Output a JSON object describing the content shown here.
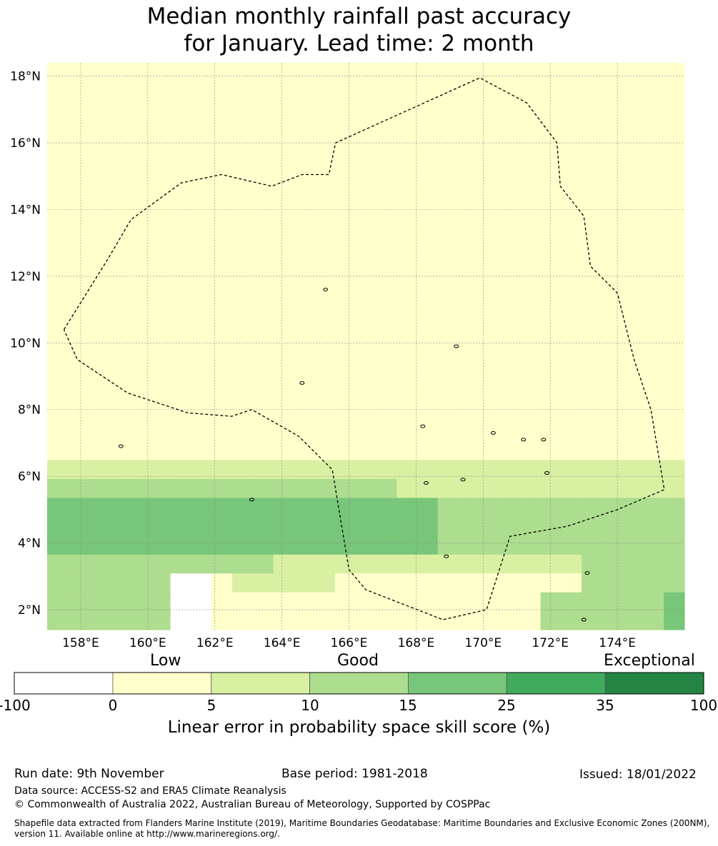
{
  "title_line1": "Median monthly rainfall past accuracy",
  "title_line2": "for January. Lead time: 2 month",
  "map": {
    "lat_labels": [
      "18°N",
      "16°N",
      "14°N",
      "12°N",
      "10°N",
      "8°N",
      "6°N",
      "4°N",
      "2°N"
    ],
    "lon_labels": [
      "158°E",
      "160°E",
      "162°E",
      "164°E",
      "166°E",
      "168°E",
      "170°E",
      "172°E",
      "174°E"
    ],
    "lat_values": [
      18,
      16,
      14,
      12,
      10,
      8,
      6,
      4,
      2
    ],
    "lon_values": [
      158,
      160,
      162,
      164,
      166,
      168,
      170,
      172,
      174
    ],
    "extent": {
      "lon_min": 157,
      "lon_max": 176,
      "lat_min": 1.4,
      "lat_max": 18.4
    },
    "cell_size_deg": {
      "lon": 0.83,
      "lat": 0.56
    },
    "eez_boundary": [
      [
        157.5,
        10.4
      ],
      [
        158.8,
        12.5
      ],
      [
        159.5,
        13.7
      ],
      [
        161.0,
        14.8
      ],
      [
        162.2,
        15.05
      ],
      [
        163.7,
        14.7
      ],
      [
        164.6,
        15.05
      ],
      [
        165.4,
        15.05
      ],
      [
        165.6,
        16.0
      ],
      [
        169.9,
        17.95
      ],
      [
        171.3,
        17.2
      ],
      [
        172.2,
        16.0
      ],
      [
        172.3,
        14.7
      ],
      [
        173.0,
        13.8
      ],
      [
        173.2,
        12.3
      ],
      [
        174.0,
        11.5
      ],
      [
        174.5,
        9.5
      ],
      [
        175.0,
        8.0
      ],
      [
        175.4,
        5.6
      ],
      [
        174.0,
        5.0
      ],
      [
        172.5,
        4.5
      ],
      [
        170.8,
        4.2
      ],
      [
        170.1,
        2.0
      ],
      [
        168.8,
        1.7
      ],
      [
        166.5,
        2.6
      ],
      [
        166.0,
        3.2
      ],
      [
        165.5,
        6.2
      ],
      [
        164.5,
        7.2
      ],
      [
        163.1,
        8.0
      ],
      [
        162.5,
        7.8
      ],
      [
        161.2,
        7.9
      ],
      [
        159.4,
        8.5
      ],
      [
        157.9,
        9.5
      ],
      [
        157.5,
        10.4
      ]
    ],
    "grid": [
      "3333330011111111111111113333334",
      "3333330011111111111111113333334",
      "3333330012222211111111111133333",
      "3333333333322222222222222233333",
      "4444444444444444444333333333333",
      "4444444444444444444333333333333",
      "4444444444444444444333333333333",
      "3333333333333333322222222222222",
      "2222222222222222222222222222222",
      "1111111111111111111111111111111",
      "1111111111111111111111111111111",
      "1111111111111111111111111111111",
      "1111111111111111111111111111111",
      "1111111111111111111111111111111",
      "1111111111111111111111111111111",
      "1111111111111111111111111111111",
      "1111111111111111111111111111111",
      "1111111111111111111111111111111",
      "1111111111111111111111111111111",
      "1111111111111111111111111111111",
      "1111111111111111111111111111111",
      "1111111111111111111111111111111",
      "1111111111111111111111111111111",
      "1111111111111111111111111111111",
      "1111111111111111111111111111111",
      "1111111111111111111111111111111",
      "1111111111111111111111111111111",
      "1111111111111111111111111111111",
      "1111111111111111111111111111111",
      "1111111111111111111111111111111"
    ]
  },
  "colorbar": {
    "category_words": [
      "Low",
      "Good",
      "Exceptional"
    ],
    "ticks": [
      "-100",
      "0",
      "5",
      "10",
      "15",
      "25",
      "35",
      "100"
    ],
    "colors": [
      "#ffffff",
      "#ffffcc",
      "#d9f0a3",
      "#addd8e",
      "#78c679",
      "#41ab5d",
      "#238443"
    ],
    "label": "Linear error in probability space skill score (%)"
  },
  "footer": {
    "run_date": "Run date: 9th November",
    "base_period": "Base period: 1981-2018",
    "issued": "Issued: 18/01/2022",
    "data_source": "Data source: ACCESS-S2 and ERA5 Climate Reanalysis",
    "copyright": "© Commonwealth of Australia 2022, Australian Bureau of Meteorology, Supported by COSPPac",
    "shapefile": "Shapefile data extracted from Flanders Marine Institute (2019), Maritime Boundaries Geodatabase: Maritime Boundaries and Exclusive Economic Zones (200NM), version 11. Available online at http://www.marineregions.org/."
  }
}
